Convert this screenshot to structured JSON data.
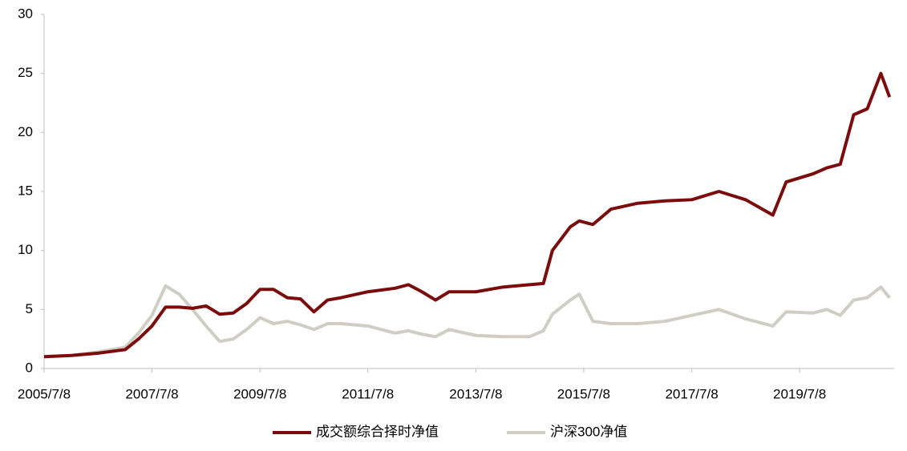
{
  "chart_data": {
    "type": "line",
    "x": [
      "2005/7/8",
      "2006/1/8",
      "2006/7/8",
      "2007/1/8",
      "2007/4/8",
      "2007/7/8",
      "2007/10/8",
      "2008/1/8",
      "2008/4/8",
      "2008/7/8",
      "2008/10/8",
      "2009/1/8",
      "2009/4/8",
      "2009/7/8",
      "2009/10/8",
      "2010/1/8",
      "2010/4/8",
      "2010/7/8",
      "2010/10/8",
      "2011/1/8",
      "2011/7/8",
      "2012/1/8",
      "2012/4/8",
      "2012/7/8",
      "2012/10/8",
      "2013/1/8",
      "2013/7/8",
      "2014/1/8",
      "2014/7/8",
      "2014/10/8",
      "2014/12/8",
      "2015/4/8",
      "2015/6/8",
      "2015/9/8",
      "2016/1/8",
      "2016/7/8",
      "2017/1/8",
      "2017/7/8",
      "2018/1/8",
      "2018/7/8",
      "2019/1/8",
      "2019/4/8",
      "2019/10/8",
      "2020/1/8",
      "2020/4/8",
      "2020/7/8",
      "2020/10/8",
      "2021/1/8",
      "2021/3/8"
    ],
    "series": [
      {
        "name": "成交额综合择时净值",
        "color": "#7b0c0c",
        "values": [
          1.0,
          1.1,
          1.3,
          1.6,
          2.5,
          3.6,
          5.2,
          5.2,
          5.1,
          5.3,
          4.6,
          4.7,
          5.5,
          6.7,
          6.7,
          6.0,
          5.9,
          4.8,
          5.8,
          6.0,
          6.5,
          6.8,
          7.1,
          6.5,
          5.8,
          6.5,
          6.5,
          6.9,
          7.1,
          7.2,
          10.0,
          12.0,
          12.5,
          12.2,
          13.5,
          14.0,
          14.2,
          14.3,
          15.0,
          14.3,
          13.0,
          15.8,
          16.5,
          17.0,
          17.3,
          21.5,
          22.0,
          25.0,
          23.0
        ]
      },
      {
        "name": "沪深300净值",
        "color": "#d0cdc5",
        "values": [
          1.0,
          1.1,
          1.4,
          1.8,
          3.0,
          4.5,
          7.0,
          6.3,
          5.0,
          3.6,
          2.3,
          2.5,
          3.3,
          4.3,
          3.8,
          4.0,
          3.7,
          3.3,
          3.8,
          3.8,
          3.6,
          3.0,
          3.2,
          2.9,
          2.7,
          3.3,
          2.8,
          2.7,
          2.7,
          3.2,
          4.6,
          5.8,
          6.3,
          4.0,
          3.8,
          3.8,
          4.0,
          4.5,
          5.0,
          4.2,
          3.6,
          4.8,
          4.7,
          5.0,
          4.5,
          5.8,
          6.0,
          6.9,
          6.0
        ]
      }
    ],
    "xlim": [
      "2005/7/8",
      "2021/4/8"
    ],
    "xticks": [
      "2005/7/8",
      "2007/7/8",
      "2009/7/8",
      "2011/7/8",
      "2013/7/8",
      "2015/7/8",
      "2017/7/8",
      "2019/7/8"
    ],
    "ylim": [
      0,
      30
    ],
    "yticks": [
      0,
      5,
      10,
      15,
      20,
      25,
      30
    ],
    "legend": "bottom"
  }
}
